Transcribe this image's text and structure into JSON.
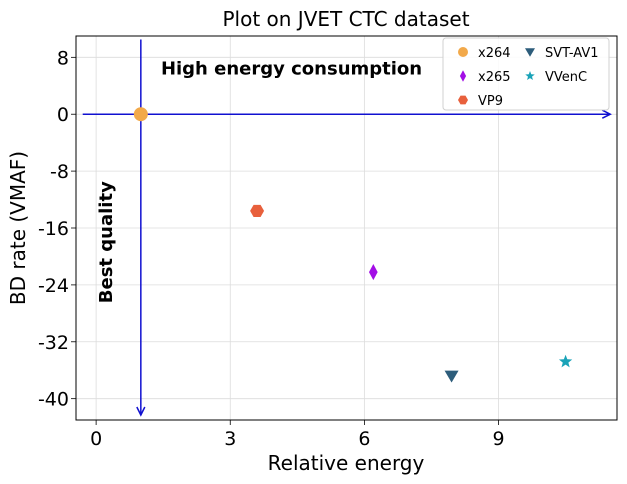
{
  "chart_data": {
    "type": "scatter",
    "title": "Plot on JVET CTC dataset",
    "xlabel": "Relative energy",
    "ylabel": "BD rate (VMAF)",
    "xlim": [
      -0.45,
      11.65
    ],
    "ylim": [
      -43,
      11
    ],
    "xticks": [
      0,
      3,
      6,
      9
    ],
    "yticks": [
      8,
      0,
      -8,
      -16,
      -24,
      -32,
      -40
    ],
    "grid": true,
    "legend_placement": "top-right",
    "legend_columns": 2,
    "series": [
      {
        "name": "x264",
        "marker": "circle",
        "color": "#f2a94a",
        "x": [
          1.0
        ],
        "y": [
          0.0
        ]
      },
      {
        "name": "x265",
        "marker": "thin-diamond",
        "color": "#a30ee6",
        "x": [
          6.2
        ],
        "y": [
          -22.2
        ]
      },
      {
        "name": "VP9",
        "marker": "hexagon",
        "color": "#e8603c",
        "x": [
          3.6
        ],
        "y": [
          -13.6
        ]
      },
      {
        "name": "SVT-AV1",
        "marker": "triangle-down",
        "color": "#2d5d7b",
        "x": [
          7.95
        ],
        "y": [
          -36.8
        ]
      },
      {
        "name": "VVenC",
        "marker": "star",
        "color": "#1aa3b8",
        "x": [
          10.5
        ],
        "y": [
          -34.8
        ]
      }
    ],
    "arrows": {
      "color": "#1010d0",
      "horizontal": {
        "from": [
          -0.3,
          0
        ],
        "to": [
          11.5,
          0
        ]
      },
      "vertical": {
        "from": [
          1.0,
          10.5
        ],
        "to": [
          1.0,
          -42.3
        ]
      }
    },
    "annotations": [
      {
        "text": "High energy consumption",
        "x": 1.45,
        "y": 5.6,
        "rotation": 0
      },
      {
        "text": "Best quality",
        "x": 0.35,
        "y": -18.0,
        "rotation": -90
      }
    ]
  }
}
